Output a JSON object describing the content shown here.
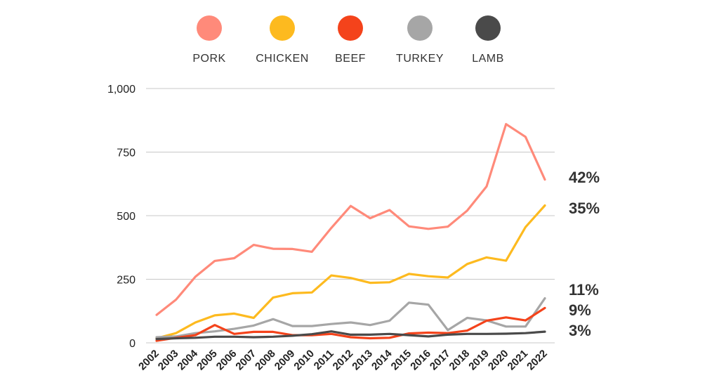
{
  "chart_data": {
    "type": "line",
    "title": "",
    "xlabel": "",
    "ylabel": "",
    "ylim": [
      0,
      1000
    ],
    "yticks": [
      0,
      250,
      500,
      750,
      1000
    ],
    "ytick_labels": [
      "0",
      "250",
      "500",
      "750",
      "1,000"
    ],
    "grid": true,
    "legend_position": "top",
    "x": [
      "2002",
      "2003",
      "2004",
      "2005",
      "2006",
      "2007",
      "2008",
      "2009",
      "2010",
      "2011",
      "2012",
      "2013",
      "2014",
      "2015",
      "2016",
      "2017",
      "2018",
      "2019",
      "2020",
      "2021",
      "2022"
    ],
    "series": [
      {
        "name": "PORK",
        "color": "#FF8A7A",
        "end_label": "42%",
        "values": [
          110,
          170,
          260,
          322,
          333,
          385,
          370,
          369,
          358,
          452,
          538,
          490,
          522,
          458,
          448,
          457,
          520,
          615,
          860,
          810,
          642
        ]
      },
      {
        "name": "CHICKEN",
        "color": "#FDBA1F",
        "end_label": "35%",
        "values": [
          18,
          38,
          80,
          108,
          115,
          98,
          178,
          195,
          198,
          265,
          255,
          236,
          238,
          271,
          262,
          257,
          310,
          336,
          323,
          455,
          540
        ]
      },
      {
        "name": "BEEF",
        "color": "#F4431B",
        "end_label": "9%",
        "values": [
          8,
          20,
          30,
          70,
          35,
          43,
          43,
          30,
          30,
          35,
          22,
          18,
          20,
          37,
          40,
          38,
          48,
          87,
          100,
          88,
          137
        ]
      },
      {
        "name": "TURKEY",
        "color": "#A6A6A6",
        "end_label": "11%",
        "values": [
          22,
          25,
          38,
          45,
          55,
          68,
          93,
          66,
          66,
          74,
          80,
          70,
          87,
          158,
          150,
          50,
          98,
          88,
          64,
          64,
          175
        ]
      },
      {
        "name": "LAMB",
        "color": "#4A4A4A",
        "end_label": "3%",
        "values": [
          15,
          18,
          20,
          24,
          24,
          22,
          24,
          28,
          34,
          45,
          32,
          32,
          35,
          30,
          25,
          32,
          35,
          35,
          36,
          38,
          44
        ]
      }
    ]
  },
  "legend_order": [
    "PORK",
    "CHICKEN",
    "BEEF",
    "TURKEY",
    "LAMB"
  ],
  "end_label_order": [
    "PORK",
    "CHICKEN",
    "TURKEY",
    "BEEF",
    "LAMB"
  ]
}
